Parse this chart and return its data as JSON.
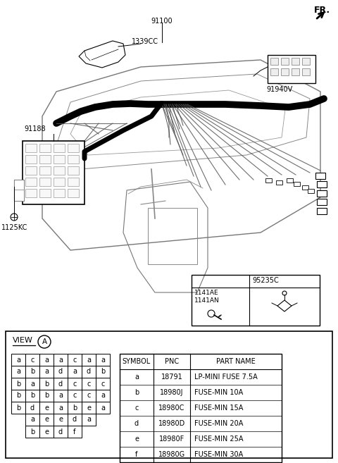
{
  "bg_color": "#ffffff",
  "fr_label": "FR.",
  "labels": {
    "main": "91100",
    "connector1": "1339CC",
    "module": "91188",
    "bolt": "1125KC",
    "ecu": "91940V",
    "relay1": "1141AE",
    "relay2": "1141AN",
    "ecu2": "95235C"
  },
  "view_label": "VIEW",
  "view_circle": "A",
  "fuse_grid": [
    [
      "a",
      "c",
      "a",
      "a",
      "c",
      "a",
      "a"
    ],
    [
      "a",
      "b",
      "a",
      "d",
      "a",
      "d",
      "b"
    ],
    [
      "b",
      "a",
      "b",
      "d",
      "c",
      "c",
      "c"
    ],
    [
      "b",
      "b",
      "b",
      "a",
      "c",
      "c",
      "a"
    ],
    [
      "b",
      "d",
      "e",
      "a",
      "b",
      "e",
      "a"
    ],
    [
      " ",
      "a",
      "e",
      "e",
      "d",
      "a",
      " "
    ],
    [
      " ",
      "b",
      "e",
      "d",
      "f",
      " ",
      " "
    ]
  ],
  "symbol_table_headers": [
    "SYMBOL",
    "PNC",
    "PART NAME"
  ],
  "symbol_table_rows": [
    [
      "a",
      "18791",
      "LP-MINI FUSE 7.5A"
    ],
    [
      "b",
      "18980J",
      "FUSE-MIN 10A"
    ],
    [
      "c",
      "18980C",
      "FUSE-MIN 15A"
    ],
    [
      "d",
      "18980D",
      "FUSE-MIN 20A"
    ],
    [
      "e",
      "18980F",
      "FUSE-MIN 25A"
    ],
    [
      "f",
      "18980G",
      "FUSE-MIN 30A"
    ]
  ],
  "diagram_img_url": ""
}
